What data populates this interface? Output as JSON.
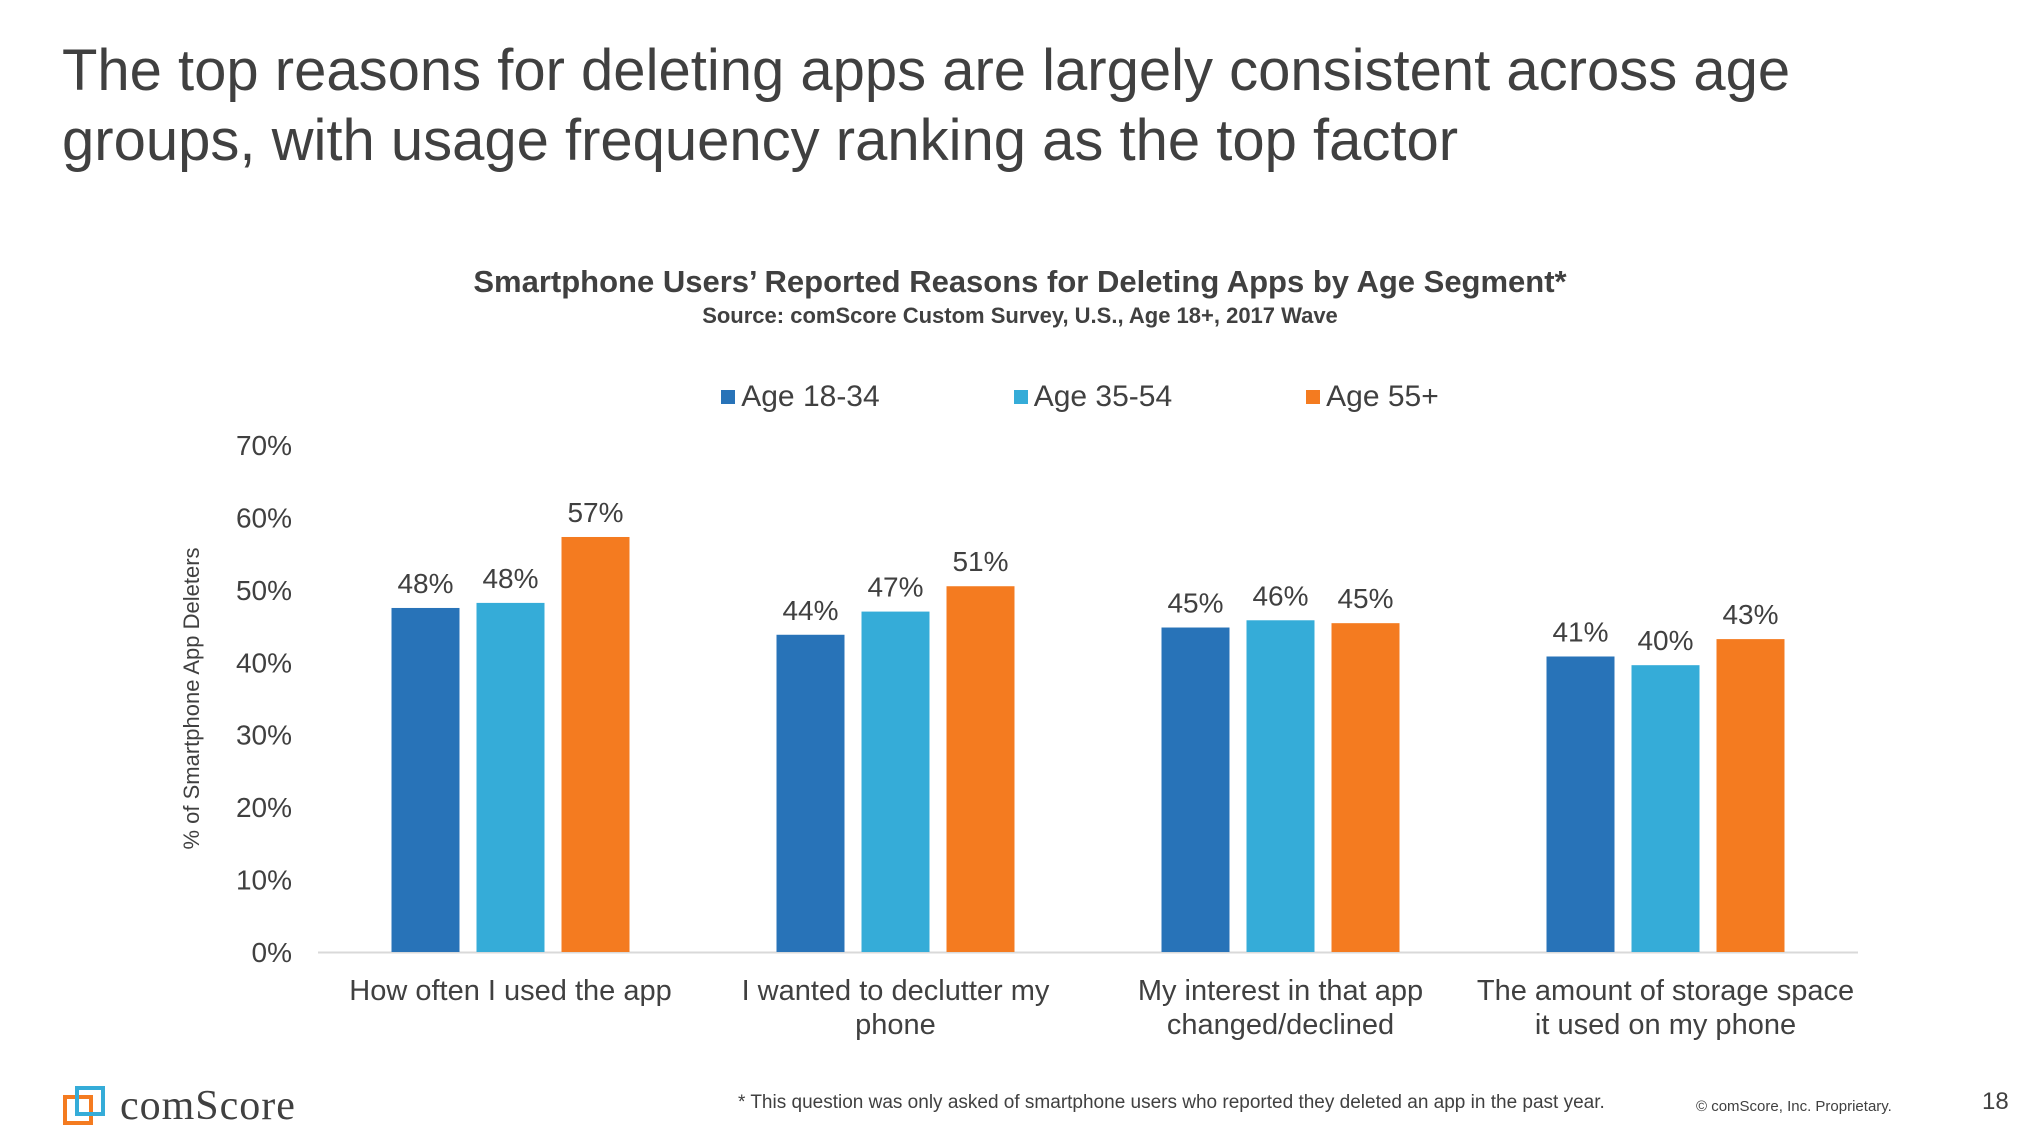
{
  "slide": {
    "title": "The top reasons for deleting apps are largely consistent across age groups, with usage frequency ranking as the top factor",
    "footnote": "* This question was only asked of smartphone users who reported they deleted an app in the past year.",
    "copyright": "© comScore, Inc. Proprietary.",
    "page_number": "18",
    "logo_text": "comScore"
  },
  "colors": {
    "age_18_34": "#2873b8",
    "age_35_54": "#35acd8",
    "age_55_plus": "#f47b20"
  },
  "chart_data": {
    "type": "bar",
    "title": "Smartphone Users’ Reported Reasons for Deleting Apps by Age Segment*",
    "subtitle": "Source: comScore Custom Survey, U.S., Age 18+, 2017 Wave",
    "xlabel": "",
    "ylabel": "% of Smartphone App Deleters",
    "ylim": [
      0,
      70
    ],
    "yticks": [
      "0%",
      "10%",
      "20%",
      "30%",
      "40%",
      "50%",
      "60%",
      "70%"
    ],
    "legend_position": "top-center",
    "grid": false,
    "categories": [
      [
        "How often I used the app"
      ],
      [
        "I wanted to declutter my",
        "phone"
      ],
      [
        "My interest in that app",
        "changed/declined"
      ],
      [
        "The amount of storage space",
        "it used on my phone"
      ]
    ],
    "series": [
      {
        "name": "Age 18-34",
        "values": [
          47.5,
          43.8,
          44.8,
          40.8
        ],
        "labels": [
          "48%",
          "44%",
          "45%",
          "41%"
        ]
      },
      {
        "name": "Age 35-54",
        "values": [
          48.2,
          47.0,
          45.8,
          39.6
        ],
        "labels": [
          "48%",
          "47%",
          "46%",
          "40%"
        ]
      },
      {
        "name": "Age 55+",
        "values": [
          57.3,
          50.5,
          45.4,
          43.2
        ],
        "labels": [
          "57%",
          "51%",
          "45%",
          "43%"
        ]
      }
    ]
  }
}
